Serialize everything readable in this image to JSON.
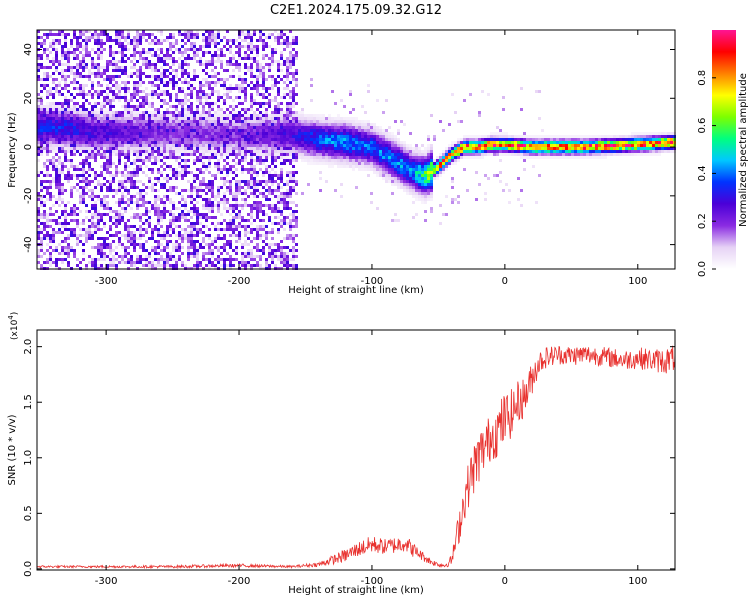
{
  "figure": {
    "title": "C2E1.2024.175.09.32.G12"
  },
  "chart_data": [
    {
      "type": "heatmap",
      "title": "C2E1.2024.175.09.32.G12",
      "xlabel": "Height of straight line (km)",
      "ylabel": "Frequency (Hz)",
      "xlim": [
        -352,
        128
      ],
      "ylim": [
        -50,
        48
      ],
      "xticks": [
        -300,
        -200,
        -100,
        0,
        100
      ],
      "yticks": [
        -40,
        -20,
        0,
        20,
        40
      ],
      "colorbar": {
        "label": "Normalized spectral amplitude",
        "range": [
          0,
          1
        ],
        "ticks": [
          0.0,
          0.2,
          0.4,
          0.6,
          0.8
        ],
        "colormap": [
          "#ffffff",
          "#e6d2f5",
          "#8a2be2",
          "#4b00d8",
          "#0033ff",
          "#00c8ff",
          "#00ff80",
          "#7dff00",
          "#ffff00",
          "#ff8000",
          "#ff0000",
          "#ff1493"
        ]
      },
      "ridge": {
        "x": [
          -350,
          -330,
          -310,
          -290,
          -250,
          -200,
          -160,
          -140,
          -120,
          -100,
          -85,
          -70,
          -60,
          -50,
          -40,
          -30,
          -20,
          -10,
          0,
          20,
          60,
          100,
          128
        ],
        "y": [
          8,
          8,
          6,
          6,
          6,
          5,
          5,
          3,
          2,
          0,
          -5,
          -10,
          -12,
          -8,
          -3,
          0,
          0,
          1,
          1,
          0,
          0,
          1,
          2
        ],
        "peak_amplitude": [
          0.35,
          0.35,
          0.3,
          0.25,
          0.2,
          0.2,
          0.3,
          0.4,
          0.45,
          0.4,
          0.45,
          0.45,
          0.6,
          0.95,
          0.9,
          0.95,
          0.95,
          0.95,
          0.95,
          0.95,
          0.95,
          0.95,
          0.95
        ]
      },
      "noise_region_x": [
        -352,
        -155
      ],
      "noise_amplitude_range": [
        0.05,
        0.3
      ]
    },
    {
      "type": "line",
      "title": "",
      "xlabel": "Height of straight line (km)",
      "ylabel": "SNR (10 * v/v)",
      "y_scale_label": "(x10",
      "y_scale_exponent": "4",
      "y_scale_suffix": ")",
      "xlim": [
        -352,
        128
      ],
      "ylim": [
        -0.01,
        2.15
      ],
      "xticks": [
        -300,
        -200,
        -100,
        0,
        100
      ],
      "yticks": [
        0.0,
        0.5,
        1.0,
        1.5,
        2.0
      ],
      "series": [
        {
          "color": "#e8312e",
          "x": [
            -352,
            -300,
            -250,
            -200,
            -160,
            -140,
            -130,
            -120,
            -110,
            -100,
            -90,
            -80,
            -75,
            -70,
            -65,
            -60,
            -55,
            -50,
            -45,
            -40,
            -35,
            -30,
            -25,
            -20,
            -15,
            -10,
            -5,
            0,
            5,
            10,
            15,
            20,
            25,
            30,
            40,
            50,
            60,
            70,
            80,
            90,
            100,
            110,
            120,
            128
          ],
          "y": [
            0.02,
            0.02,
            0.02,
            0.03,
            0.02,
            0.04,
            0.08,
            0.12,
            0.18,
            0.22,
            0.2,
            0.22,
            0.24,
            0.18,
            0.14,
            0.1,
            0.06,
            0.04,
            0.03,
            0.08,
            0.35,
            0.65,
            0.85,
            1.0,
            1.1,
            1.2,
            1.25,
            1.35,
            1.4,
            1.5,
            1.55,
            1.7,
            1.85,
            1.9,
            1.93,
            1.92,
            1.93,
            1.92,
            1.9,
            1.88,
            1.9,
            1.88,
            1.87,
            1.9
          ],
          "noise": [
            0.01,
            0.01,
            0.012,
            0.015,
            0.01,
            0.02,
            0.04,
            0.06,
            0.07,
            0.08,
            0.07,
            0.08,
            0.08,
            0.07,
            0.05,
            0.04,
            0.03,
            0.02,
            0.02,
            0.05,
            0.15,
            0.2,
            0.22,
            0.25,
            0.22,
            0.22,
            0.25,
            0.25,
            0.22,
            0.2,
            0.18,
            0.15,
            0.12,
            0.1,
            0.09,
            0.09,
            0.09,
            0.09,
            0.09,
            0.09,
            0.1,
            0.1,
            0.12,
            0.12
          ]
        }
      ]
    }
  ]
}
